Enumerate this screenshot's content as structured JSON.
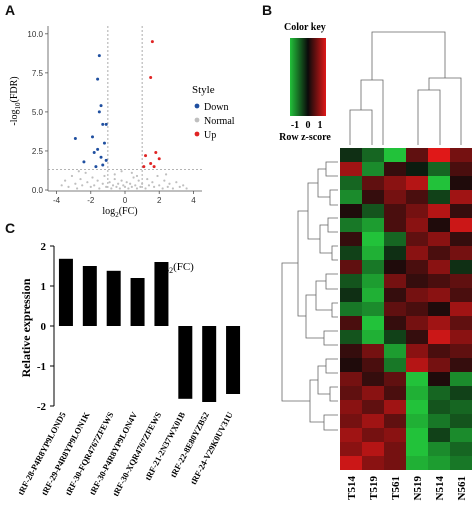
{
  "panels": {
    "a": "A",
    "b": "B",
    "c": "C"
  },
  "chart_data": [
    {
      "panel": "A",
      "type": "scatter",
      "xlabel_base": "log",
      "xlabel_sub": "2",
      "xlabel_tail": "(FC)",
      "ylabel_head": "-log",
      "ylabel_sub": "10",
      "ylabel_tail": "(FDR)",
      "xlim": [
        -4.5,
        4.5
      ],
      "ylim": [
        0,
        10.5
      ],
      "x_ticks": [
        "-4",
        "-2",
        "0",
        "2",
        "4"
      ],
      "y_ticks": [
        "0.0",
        "2.5",
        "5.0",
        "7.5",
        "10.0"
      ],
      "thresholds": {
        "fc": [
          -1,
          1
        ],
        "fdr": 1.3
      },
      "legend": {
        "title": "Style",
        "items": [
          "Down",
          "Normal",
          "Up"
        ]
      },
      "colors": {
        "Down": "#1f4fa0",
        "Normal": "#bfbfbf",
        "Up": "#e02424"
      },
      "series": [
        {
          "name": "Down",
          "points": [
            [
              -1.5,
              8.6
            ],
            [
              -1.6,
              7.1
            ],
            [
              -1.4,
              5.4
            ],
            [
              -1.5,
              5.0
            ],
            [
              -1.1,
              4.2
            ],
            [
              -1.3,
              4.2
            ],
            [
              -2.9,
              3.3
            ],
            [
              -1.9,
              3.4
            ],
            [
              -1.2,
              3.0
            ],
            [
              -1.6,
              2.6
            ],
            [
              -1.8,
              2.4
            ],
            [
              -1.4,
              2.1
            ],
            [
              -1.1,
              1.9
            ],
            [
              -2.4,
              1.8
            ],
            [
              -1.3,
              1.6
            ],
            [
              -1.7,
              1.5
            ]
          ]
        },
        {
          "name": "Up",
          "points": [
            [
              1.6,
              9.5
            ],
            [
              1.5,
              7.2
            ],
            [
              1.8,
              2.4
            ],
            [
              1.2,
              2.2
            ],
            [
              2.0,
              2.0
            ],
            [
              1.5,
              1.7
            ],
            [
              1.1,
              1.5
            ],
            [
              1.7,
              1.5
            ]
          ]
        },
        {
          "name": "Normal",
          "points": [
            [
              -3.7,
              0.3
            ],
            [
              -3.5,
              0.6
            ],
            [
              -3.3,
              0.2
            ],
            [
              -3.1,
              0.9
            ],
            [
              -2.9,
              0.4
            ],
            [
              -2.8,
              0.1
            ],
            [
              -2.6,
              0.7
            ],
            [
              -2.5,
              0.3
            ],
            [
              -2.3,
              1.1
            ],
            [
              -2.2,
              0.5
            ],
            [
              -2.0,
              0.2
            ],
            [
              -1.9,
              0.8
            ],
            [
              -1.8,
              0.3
            ],
            [
              -1.6,
              0.6
            ],
            [
              -1.5,
              0.1
            ],
            [
              -1.3,
              0.4
            ],
            [
              -1.2,
              0.9
            ],
            [
              -1.1,
              0.2
            ],
            [
              -0.9,
              0.5
            ],
            [
              -0.8,
              0.1
            ],
            [
              -0.7,
              0.3
            ],
            [
              -0.6,
              0.7
            ],
            [
              -0.5,
              0.2
            ],
            [
              -0.4,
              0.4
            ],
            [
              -0.3,
              0.1
            ],
            [
              -0.2,
              0.6
            ],
            [
              -0.1,
              0.3
            ],
            [
              0.0,
              0.2
            ],
            [
              0.1,
              0.5
            ],
            [
              0.2,
              0.1
            ],
            [
              0.3,
              0.4
            ],
            [
              0.4,
              0.2
            ],
            [
              0.5,
              0.8
            ],
            [
              0.6,
              0.3
            ],
            [
              0.7,
              0.1
            ],
            [
              0.8,
              0.6
            ],
            [
              0.9,
              0.2
            ],
            [
              1.0,
              0.4
            ],
            [
              1.2,
              0.1
            ],
            [
              1.3,
              0.7
            ],
            [
              1.4,
              0.3
            ],
            [
              1.6,
              0.5
            ],
            [
              1.7,
              0.2
            ],
            [
              1.9,
              0.9
            ],
            [
              2.0,
              0.3
            ],
            [
              2.2,
              0.1
            ],
            [
              2.3,
              0.6
            ],
            [
              2.5,
              0.2
            ],
            [
              2.6,
              0.4
            ],
            [
              2.8,
              0.1
            ],
            [
              3.0,
              0.5
            ],
            [
              3.2,
              0.2
            ],
            [
              3.4,
              0.3
            ],
            [
              3.6,
              0.1
            ],
            [
              -0.6,
              1.0
            ],
            [
              0.4,
              1.1
            ],
            [
              -0.2,
              1.2
            ],
            [
              0.7,
              0.9
            ],
            [
              -2.7,
              1.2
            ],
            [
              2.4,
              1.0
            ]
          ]
        }
      ]
    },
    {
      "panel": "B",
      "type": "heatmap",
      "color_key_title": "Color key",
      "color_key_ticks": [
        "-1",
        "0",
        "1"
      ],
      "color_key_label": "Row z-score",
      "colors": {
        "low": "#22c23a",
        "mid": "#0a0a0a",
        "high": "#e01818"
      },
      "columns": [
        "T514",
        "T519",
        "T561",
        "N519",
        "N514",
        "N561"
      ],
      "values": [
        [
          -0.2,
          -0.5,
          -1.0,
          0.4,
          1.2,
          0.5
        ],
        [
          0.7,
          -0.7,
          0.2,
          -0.1,
          -0.5,
          0.3
        ],
        [
          -0.5,
          0.4,
          0.6,
          0.8,
          -1.0,
          0.1
        ],
        [
          -0.7,
          0.2,
          0.5,
          0.3,
          -0.3,
          0.7
        ],
        [
          0.1,
          -0.4,
          0.3,
          0.5,
          0.8,
          0.2
        ],
        [
          -0.6,
          -0.8,
          0.3,
          0.6,
          0.1,
          0.9
        ],
        [
          0.2,
          -1.0,
          -0.5,
          0.4,
          0.6,
          0.2
        ],
        [
          -0.3,
          -0.9,
          -0.2,
          0.6,
          0.3,
          0.5
        ],
        [
          0.4,
          -0.6,
          0.1,
          0.3,
          0.6,
          -0.2
        ],
        [
          -0.4,
          -0.8,
          0.5,
          0.2,
          0.3,
          0.4
        ],
        [
          -0.2,
          -0.9,
          0.2,
          0.5,
          0.6,
          0.3
        ],
        [
          -0.6,
          -0.7,
          0.4,
          0.3,
          0.1,
          0.7
        ],
        [
          0.3,
          -1.0,
          0.2,
          0.5,
          0.7,
          0.4
        ],
        [
          -0.4,
          -0.9,
          -0.3,
          0.2,
          0.9,
          0.6
        ],
        [
          0.2,
          0.5,
          -0.8,
          0.6,
          0.3,
          0.4
        ],
        [
          0.1,
          0.3,
          -0.6,
          0.8,
          0.5,
          0.2
        ],
        [
          0.5,
          0.2,
          0.4,
          -1.0,
          0.1,
          -0.7
        ],
        [
          0.4,
          0.6,
          0.3,
          -0.9,
          -0.5,
          -0.3
        ],
        [
          0.6,
          0.4,
          0.7,
          -1.0,
          -0.4,
          -0.5
        ],
        [
          0.5,
          0.7,
          0.4,
          -0.9,
          -0.6,
          -0.4
        ],
        [
          0.7,
          0.5,
          0.6,
          -1.0,
          -0.3,
          -0.7
        ],
        [
          0.6,
          0.8,
          0.5,
          -1.0,
          -0.7,
          -0.5
        ],
        [
          0.9,
          0.6,
          0.5,
          -0.9,
          -0.8,
          -0.6
        ]
      ]
    },
    {
      "panel": "C",
      "type": "bar",
      "ylabel": "Relative expression",
      "xlabel_base": "log",
      "xlabel_sub": "2",
      "xlabel_tail": "(FC)",
      "ylim": [
        -2,
        2
      ],
      "y_ticks": [
        "2",
        "1",
        "0",
        "-1",
        "-2"
      ],
      "color": "#000000",
      "categories": [
        "tRF-28-P4R8YP9LOND5",
        "tRF-29-P4R8YP9LON1K",
        "tRF-30-FQR4767ZFEWS",
        "tRF-30-P4R8YP9LON4V",
        "tRF-30-XQR4767ZFEWS",
        "tRF-21-2N37WX01B",
        "tRF-22-8E80YZB52",
        "tRF-24-V29K0UV31U"
      ],
      "values": [
        1.68,
        1.5,
        1.38,
        1.2,
        1.6,
        -1.82,
        -1.9,
        -1.7
      ]
    }
  ]
}
